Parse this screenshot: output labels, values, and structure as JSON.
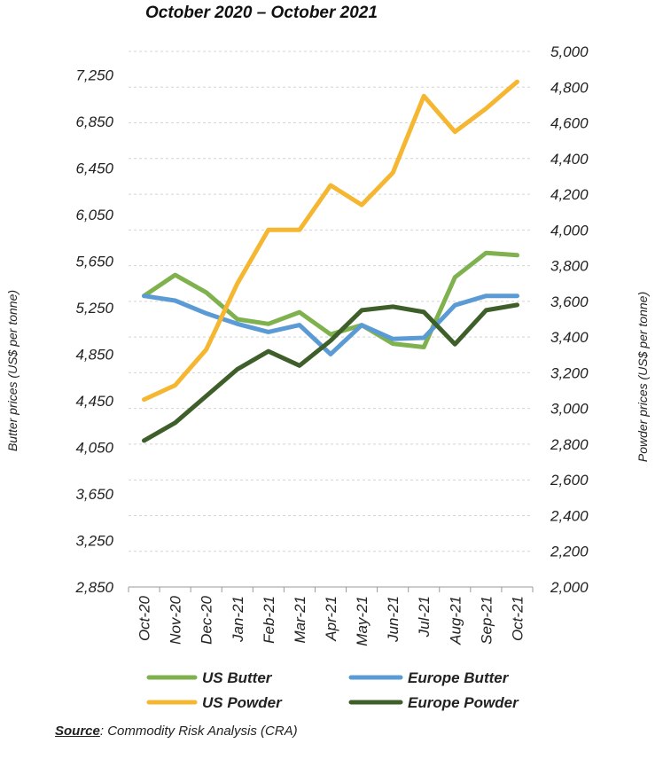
{
  "source": {
    "label": "Source",
    "text": ": Commodity Risk Analysis (CRA)"
  },
  "chart_data": {
    "type": "line",
    "title": "October 2020 – October 2021",
    "categories": [
      "Oct-20",
      "Nov-20",
      "Dec-20",
      "Jan-21",
      "Feb-21",
      "Mar-21",
      "Apr-21",
      "May-21",
      "Jun-21",
      "Jul-21",
      "Aug-21",
      "Sep-21",
      "Oct-21"
    ],
    "y_left": {
      "label": "Butter prices (US$ per tonne)",
      "range": [
        2850,
        7450
      ],
      "ticks": [
        "7,250",
        "6,850",
        "6,450",
        "6,050",
        "5,650",
        "5,250",
        "4,850",
        "4,450",
        "4,050",
        "3,650",
        "3,250",
        "2,850"
      ],
      "tick_values": [
        7250,
        6850,
        6450,
        6050,
        5650,
        5250,
        4850,
        4450,
        4050,
        3650,
        3250,
        2850
      ]
    },
    "y_right": {
      "label": "Powder prices (US$ per tonne)",
      "range": [
        2000,
        5000
      ],
      "ticks": [
        "5,000",
        "4,800",
        "4,600",
        "4,400",
        "4,200",
        "4,000",
        "3,800",
        "3,600",
        "3,400",
        "3,200",
        "3,000",
        "2,800",
        "2,600",
        "2,400",
        "2,200",
        "2,000"
      ],
      "tick_values": [
        5000,
        4800,
        4600,
        4400,
        4200,
        4000,
        3800,
        3600,
        3400,
        3200,
        3000,
        2800,
        2600,
        2400,
        2200,
        2000
      ]
    },
    "grid": true,
    "legend_position": "bottom",
    "series": [
      {
        "name": "US Butter",
        "axis": "left",
        "color": "#7fb24e",
        "values": [
          5350,
          5530,
          5380,
          5150,
          5110,
          5210,
          5020,
          5100,
          4940,
          4910,
          5510,
          5720,
          5700
        ]
      },
      {
        "name": "Europe Butter",
        "axis": "left",
        "color": "#5b9bd5",
        "values": [
          5350,
          5310,
          5200,
          5110,
          5040,
          5100,
          4850,
          5100,
          4980,
          4990,
          5270,
          5350,
          5350
        ]
      },
      {
        "name": "US Powder",
        "axis": "right",
        "color": "#f5b731",
        "values": [
          3050,
          3130,
          3330,
          3700,
          4000,
          4000,
          4250,
          4140,
          4320,
          4750,
          4550,
          4680,
          4830
        ]
      },
      {
        "name": "Europe Powder",
        "axis": "right",
        "color": "#3f5f2a",
        "values": [
          2820,
          2920,
          3070,
          3220,
          3320,
          3240,
          3380,
          3550,
          3570,
          3540,
          3360,
          3550,
          3580
        ]
      }
    ]
  }
}
